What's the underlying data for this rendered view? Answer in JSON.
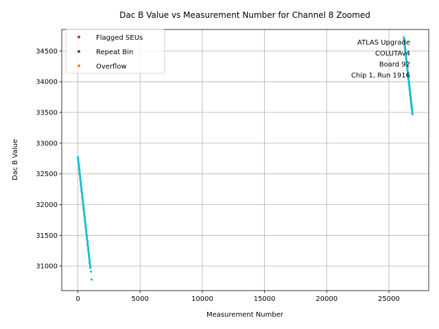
{
  "chart_data": {
    "type": "scatter",
    "title": "Dac B Value vs Measurement Number for Channel 8 Zoomed",
    "xlabel": "Measurement Number",
    "ylabel": "Dac B Value",
    "xlim": [
      -1300,
      28200
    ],
    "ylim": [
      30600,
      34850
    ],
    "xticks": [
      0,
      5000,
      10000,
      15000,
      20000,
      25000
    ],
    "yticks": [
      31000,
      31500,
      32000,
      32500,
      33000,
      33500,
      34000,
      34500
    ],
    "grid": true,
    "legend_position": "top-left",
    "legend": [
      {
        "label": "Flagged SEUs",
        "color": "#d62728"
      },
      {
        "label": "Repeat Bin",
        "color": "#7f1f7f"
      },
      {
        "label": "Overflow",
        "color": "#ff7f0e"
      }
    ],
    "annotation_lines": [
      "ATLAS Upgrade",
      "COLUTAv4",
      "Board 92",
      "Chip 1, Run 1916"
    ],
    "annotation_position": "top-right",
    "series": [
      {
        "color": "#17becf",
        "segments": [
          {
            "x_start": 0,
            "x_end": 1000,
            "y_start": 32770,
            "y_end": 30970,
            "count": 70
          },
          {
            "x_start": 26200,
            "x_end": 26900,
            "y_start": 34720,
            "y_end": 33470,
            "count": 60
          }
        ],
        "points": [
          [
            1100,
            30780
          ],
          [
            1050,
            30910
          ],
          [
            1000,
            31000
          ]
        ]
      }
    ]
  }
}
